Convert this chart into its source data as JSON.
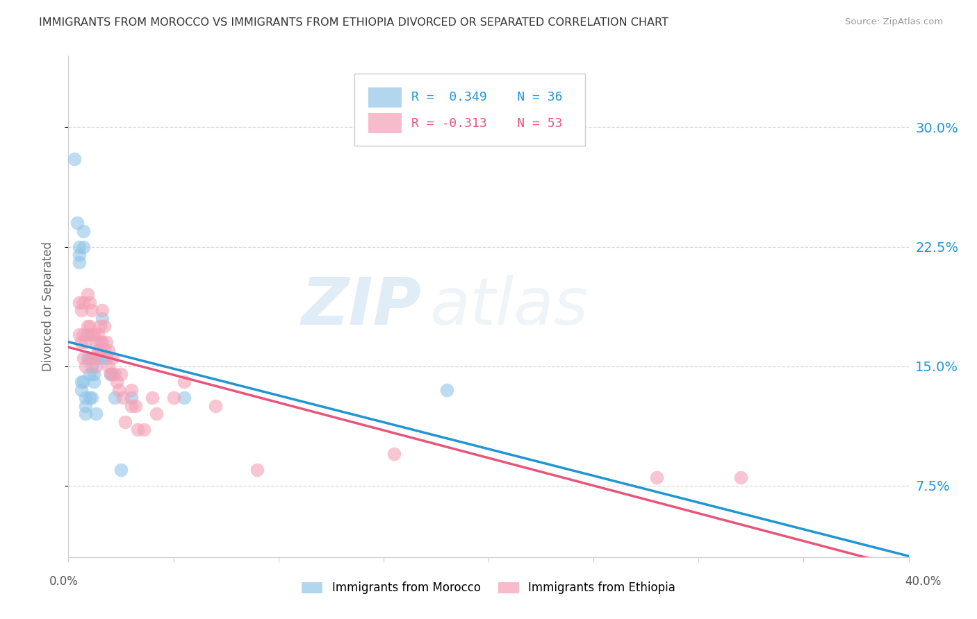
{
  "title": "IMMIGRANTS FROM MOROCCO VS IMMIGRANTS FROM ETHIOPIA DIVORCED OR SEPARATED CORRELATION CHART",
  "source": "Source: ZipAtlas.com",
  "ylabel": "Divorced or Separated",
  "ytick_labels": [
    "7.5%",
    "15.0%",
    "22.5%",
    "30.0%"
  ],
  "ytick_values": [
    0.075,
    0.15,
    0.225,
    0.3
  ],
  "xlim": [
    0.0,
    0.4
  ],
  "ylim": [
    0.03,
    0.345
  ],
  "morocco_color": "#92c5e8",
  "ethiopia_color": "#f4a0b5",
  "morocco_line_color": "#2196d4",
  "ethiopia_line_color": "#e8547a",
  "dashed_line_color": "#b0c8d8",
  "watermark_zip": "ZIP",
  "watermark_atlas": "atlas",
  "bg_color": "#ffffff",
  "grid_color": "#d8d8d8",
  "morocco_x": [
    0.003,
    0.004,
    0.005,
    0.005,
    0.005,
    0.006,
    0.006,
    0.007,
    0.007,
    0.007,
    0.008,
    0.008,
    0.008,
    0.009,
    0.009,
    0.01,
    0.01,
    0.01,
    0.011,
    0.011,
    0.012,
    0.012,
    0.013,
    0.013,
    0.014,
    0.015,
    0.016,
    0.016,
    0.018,
    0.02,
    0.021,
    0.022,
    0.025,
    0.03,
    0.055,
    0.18
  ],
  "morocco_y": [
    0.28,
    0.24,
    0.225,
    0.22,
    0.215,
    0.14,
    0.135,
    0.235,
    0.225,
    0.14,
    0.13,
    0.125,
    0.12,
    0.17,
    0.155,
    0.155,
    0.145,
    0.13,
    0.15,
    0.13,
    0.145,
    0.14,
    0.155,
    0.12,
    0.155,
    0.165,
    0.18,
    0.155,
    0.155,
    0.145,
    0.145,
    0.13,
    0.085,
    0.13,
    0.13,
    0.135
  ],
  "ethiopia_x": [
    0.005,
    0.005,
    0.006,
    0.006,
    0.007,
    0.007,
    0.007,
    0.008,
    0.008,
    0.009,
    0.009,
    0.01,
    0.01,
    0.011,
    0.011,
    0.011,
    0.012,
    0.012,
    0.013,
    0.013,
    0.014,
    0.014,
    0.015,
    0.015,
    0.016,
    0.016,
    0.017,
    0.017,
    0.018,
    0.019,
    0.019,
    0.02,
    0.021,
    0.022,
    0.023,
    0.024,
    0.025,
    0.026,
    0.027,
    0.03,
    0.03,
    0.032,
    0.033,
    0.036,
    0.04,
    0.042,
    0.05,
    0.055,
    0.07,
    0.09,
    0.155,
    0.28,
    0.32
  ],
  "ethiopia_y": [
    0.19,
    0.17,
    0.185,
    0.165,
    0.19,
    0.17,
    0.155,
    0.165,
    0.15,
    0.195,
    0.175,
    0.19,
    0.175,
    0.185,
    0.17,
    0.155,
    0.17,
    0.155,
    0.165,
    0.15,
    0.17,
    0.16,
    0.175,
    0.16,
    0.185,
    0.165,
    0.175,
    0.16,
    0.165,
    0.16,
    0.15,
    0.145,
    0.155,
    0.145,
    0.14,
    0.135,
    0.145,
    0.13,
    0.115,
    0.135,
    0.125,
    0.125,
    0.11,
    0.11,
    0.13,
    0.12,
    0.13,
    0.14,
    0.125,
    0.085,
    0.095,
    0.08,
    0.08
  ]
}
